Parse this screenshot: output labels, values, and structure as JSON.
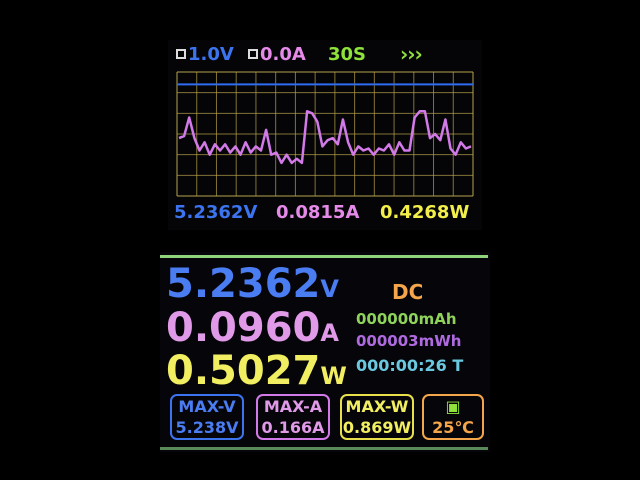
{
  "graph": {
    "voltage_scale": "1.0V",
    "current_scale": "0.0A",
    "time_span": "30S",
    "arrows_icon": "triple-chevron-right-icon",
    "voltage": "5.2362V",
    "current": "0.0815A",
    "power": "0.4268W",
    "colors": {
      "grid": "#b8a24a",
      "voltage_trace": "#2f6cf0",
      "current_trace": "#d27ae8",
      "voltage": "#3c74f0",
      "current": "#e58ae8",
      "power": "#f2ee4a",
      "time": "#8fe23a"
    },
    "chart_data": {
      "type": "line",
      "grid": true,
      "series": [
        {
          "values": [
            2.8,
            2.9,
            3.8,
            2.8,
            2.2,
            2.6,
            2.0,
            2.5,
            2.2,
            2.5,
            2.1,
            2.4,
            2.0,
            2.6,
            2.1,
            2.4,
            2.2,
            3.2,
            2.0,
            2.1,
            1.6,
            2.0,
            1.6,
            1.8,
            1.6,
            4.1,
            4.0,
            3.6,
            2.4,
            2.7,
            2.8,
            2.5,
            3.7,
            2.6,
            2.0,
            2.4,
            2.2,
            2.3,
            2.0,
            2.3,
            2.2,
            2.5,
            2.0,
            2.6,
            2.2,
            2.2,
            3.8,
            4.1,
            4.1,
            2.8,
            3.0,
            2.7,
            3.7,
            2.3,
            2.0,
            2.6,
            2.3,
            2.4
          ]
        },
        {
          "values": [
            5.4
          ]
        }
      ]
    }
  },
  "main": {
    "voltage": "5.2362",
    "voltage_unit": "V",
    "current": "0.0960",
    "current_unit": "A",
    "power": "0.5027",
    "power_unit": "W",
    "mode": "DC",
    "capacity": "000000mAh",
    "energy": "000003mWh",
    "timer": "000:00:26",
    "timer_suffix": "T",
    "max_v_label": "MAX-V",
    "max_v": "5.238V",
    "max_a_label": "MAX-A",
    "max_a": "0.166A",
    "max_w_label": "MAX-W",
    "max_w": "0.869W",
    "temp_icon": "chip-icon",
    "temperature": "25℃"
  }
}
